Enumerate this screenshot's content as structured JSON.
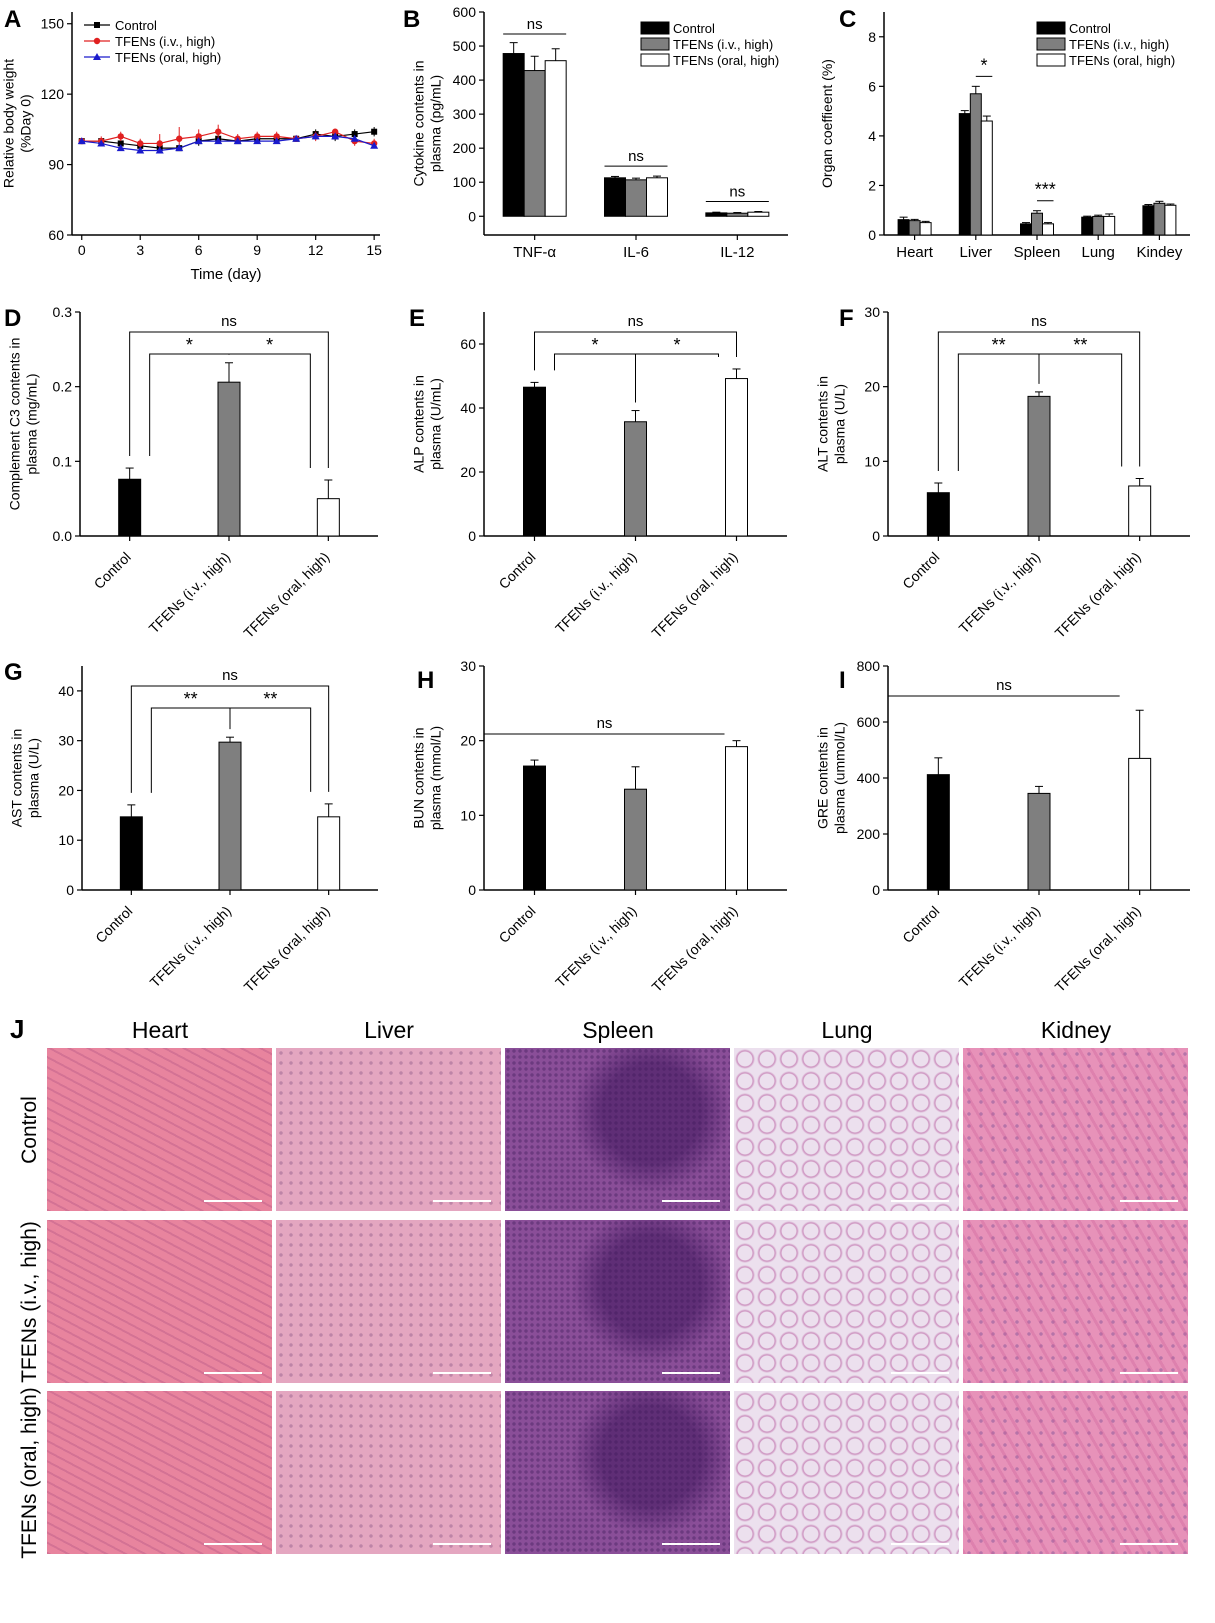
{
  "colors": {
    "control": "#000000",
    "iv": "#7f7f7f",
    "oral": "#ffffff",
    "line_iv": "#e02020",
    "line_oral": "#1a1acc"
  },
  "groups": [
    "Control",
    "TFENs (i.v., high)",
    "TFENs (oral, high)"
  ],
  "legend": {
    "control": "Control",
    "iv": "TFENs (i.v., high)",
    "oral": "TFENs (oral, high)"
  },
  "chart_data": [
    {
      "id": "A",
      "letter": "A",
      "type": "line",
      "xlabel": "Time (day)",
      "ylabel": [
        "Relative body weight",
        "(%Day 0)"
      ],
      "xlim": [
        -0.5,
        15.3
      ],
      "ylim": [
        60,
        155
      ],
      "xticks": [
        0,
        3,
        6,
        9,
        12,
        15
      ],
      "yticks": [
        60,
        90,
        120,
        150
      ],
      "legend_labels": [
        "Control",
        "TFENs (i.v., high)",
        "TFENs (oral, high)"
      ],
      "x": [
        0,
        1,
        2,
        3,
        4,
        5,
        6,
        7,
        8,
        9,
        10,
        11,
        12,
        13,
        14,
        15
      ],
      "series": [
        {
          "name": "Control",
          "marker": "square",
          "values": [
            100,
            100,
            99,
            98,
            97,
            97,
            100,
            101,
            100,
            101,
            101,
            101,
            103,
            102,
            103,
            104
          ],
          "err": [
            1,
            1,
            1,
            1,
            1,
            1,
            2,
            2,
            1,
            1,
            2,
            1,
            2,
            2,
            2,
            2
          ]
        },
        {
          "name": "TFENs (i.v., high)",
          "marker": "circle",
          "values": [
            100,
            100,
            102,
            99,
            99,
            101,
            102,
            104,
            101,
            102,
            102,
            101,
            102,
            104,
            100,
            99
          ],
          "err": [
            1,
            2,
            2,
            2,
            4,
            5,
            3,
            3,
            2,
            2,
            2,
            1,
            2,
            1,
            2,
            2
          ]
        },
        {
          "name": "TFENs (oral, high)",
          "marker": "triangle",
          "values": [
            100,
            99,
            97,
            96,
            96,
            97,
            100,
            100,
            100,
            100,
            100,
            101,
            102,
            102,
            101,
            98
          ],
          "err": [
            1,
            1,
            1,
            1,
            1,
            1,
            1,
            1,
            1,
            1,
            1,
            1,
            1,
            1,
            1,
            1
          ]
        }
      ]
    },
    {
      "id": "B",
      "letter": "B",
      "type": "bar",
      "ylabel": [
        "Cytokine contents in",
        "plasma (pg/mL)"
      ],
      "ylim": [
        -55,
        600
      ],
      "yticks": [
        0,
        100,
        200,
        300,
        400,
        500,
        600
      ],
      "categories": [
        "TNF-α",
        "IL-6",
        "IL-12"
      ],
      "legend_labels": [
        "Control",
        "TFENs  (i.v., high)",
        "TFENs  (oral, high)"
      ],
      "series": [
        {
          "name": "Control",
          "values": [
            478,
            113,
            10
          ],
          "err": [
            32,
            4,
            2
          ]
        },
        {
          "name": "TFENs  (i.v., high)",
          "values": [
            428,
            107,
            9
          ],
          "err": [
            42,
            5,
            2
          ]
        },
        {
          "name": "TFENs  (oral, high)",
          "values": [
            457,
            113,
            12
          ],
          "err": [
            35,
            5,
            2
          ]
        }
      ],
      "annotations": [
        {
          "label": "ns",
          "cat": 0
        },
        {
          "label": "ns",
          "cat": 1
        },
        {
          "label": "ns",
          "cat": 2
        }
      ]
    },
    {
      "id": "C",
      "letter": "C",
      "type": "bar",
      "ylabel": [
        "Organ coeffieent (%)"
      ],
      "ylim": [
        0,
        9
      ],
      "yticks": [
        0,
        2,
        4,
        6,
        8
      ],
      "categories": [
        "Heart",
        "Liver",
        "Spleen",
        "Lung",
        "Kindey"
      ],
      "legend_labels": [
        "Control",
        "TFENs  (i.v., high)",
        "TFENs  (oral, high)"
      ],
      "series": [
        {
          "name": "Control",
          "values": [
            0.62,
            4.9,
            0.45,
            0.72,
            1.18
          ],
          "err": [
            0.1,
            0.12,
            0.05,
            0.04,
            0.05
          ]
        },
        {
          "name": "TFENs  (i.v., high)",
          "values": [
            0.58,
            5.7,
            0.88,
            0.75,
            1.28
          ],
          "err": [
            0.05,
            0.3,
            0.1,
            0.05,
            0.08
          ]
        },
        {
          "name": "TFENs  (oral, high)",
          "values": [
            0.5,
            4.6,
            0.45,
            0.75,
            1.2
          ],
          "err": [
            0.05,
            0.2,
            0.05,
            0.1,
            0.05
          ]
        }
      ],
      "annotations": [
        {
          "label": "*",
          "cat": 1
        },
        {
          "label": "***",
          "cat": 2
        }
      ]
    },
    {
      "id": "D",
      "letter": "D",
      "type": "bar",
      "ylabel": [
        "Complement C3 contents in",
        "plasma (mg/mL)"
      ],
      "ylim": [
        0,
        0.3
      ],
      "yticks": [
        0,
        0.1,
        0.2,
        0.3
      ],
      "ytick_labels": [
        "0.0",
        "0.1",
        "0.2",
        "0.3"
      ],
      "categories": [
        "Control",
        "TFENs (i.v., high)",
        "TFENs (oral, high)"
      ],
      "values": [
        0.076,
        0.206,
        0.05
      ],
      "err": [
        0.015,
        0.026,
        0.025
      ],
      "sig": {
        "outer": "ns",
        "left": "*",
        "right": "*"
      }
    },
    {
      "id": "E",
      "letter": "E",
      "type": "bar",
      "ylabel": [
        "ALP contents in",
        "plasma (U/mL)"
      ],
      "ylim": [
        0,
        70
      ],
      "yticks": [
        0,
        20,
        40,
        60
      ],
      "categories": [
        "Control",
        "TFENs (i.v., high)",
        "TFENs (oral, high)"
      ],
      "values": [
        46.5,
        35.7,
        49.2
      ],
      "err": [
        1.5,
        3.5,
        3.0
      ],
      "sig": {
        "outer": "ns",
        "left": "*",
        "right": "*"
      }
    },
    {
      "id": "F",
      "letter": "F",
      "type": "bar",
      "ylabel": [
        "ALT contents in",
        "plasma (U/L)"
      ],
      "ylim": [
        0,
        30
      ],
      "yticks": [
        0,
        10,
        20,
        30
      ],
      "categories": [
        "Control",
        "TFENs (i.v., high)",
        "TFENs (oral, high)"
      ],
      "values": [
        5.8,
        18.7,
        6.7
      ],
      "err": [
        1.3,
        0.6,
        1.0
      ],
      "sig": {
        "outer": "ns",
        "left": "**",
        "right": "**"
      }
    },
    {
      "id": "G",
      "letter": "G",
      "type": "bar",
      "ylabel": [
        "AST contents in",
        "plasma (U/L)"
      ],
      "ylim": [
        0,
        45
      ],
      "yticks": [
        0,
        10,
        20,
        30,
        40
      ],
      "categories": [
        "Control",
        "TFENs (i.v., high)",
        "TFENs (oral, high)"
      ],
      "values": [
        14.7,
        29.7,
        14.7
      ],
      "err": [
        2.4,
        1.0,
        2.6
      ],
      "sig": {
        "outer": "ns",
        "left": "**",
        "right": "**"
      }
    },
    {
      "id": "H",
      "letter": "H",
      "type": "bar",
      "ylabel": [
        "BUN contents in",
        "plasma (mmol/L)"
      ],
      "ylim": [
        0,
        30
      ],
      "yticks": [
        0,
        10,
        20,
        30
      ],
      "categories": [
        "Control",
        "TFENs (i.v., high)",
        "TFENs (oral, high)"
      ],
      "values": [
        16.6,
        13.5,
        19.2
      ],
      "err": [
        0.8,
        3.0,
        0.8
      ],
      "sig": {
        "line": "ns"
      }
    },
    {
      "id": "I",
      "letter": "I",
      "type": "bar",
      "ylabel": [
        "GRE contents in",
        "plasma (ummol/L)"
      ],
      "ylim": [
        0,
        800
      ],
      "yticks": [
        0,
        200,
        400,
        600,
        800
      ],
      "categories": [
        "Control",
        "TFENs (i.v., high)",
        "TFENs (oral, high)"
      ],
      "values": [
        412,
        345,
        470
      ],
      "err": [
        60,
        25,
        172
      ],
      "sig": {
        "line": "ns"
      }
    }
  ],
  "histology": {
    "letter": "J",
    "columns": [
      "Heart",
      "Liver",
      "Spleen",
      "Lung",
      "Kidney"
    ],
    "rows": [
      "Control",
      "TFENs (i.v., high)",
      "TFENs (oral, high)"
    ],
    "tissue_colors": [
      "#e8849e",
      "#e4a6c0",
      "#8a4e98",
      "#ece0ee",
      "#e792b9"
    ]
  }
}
